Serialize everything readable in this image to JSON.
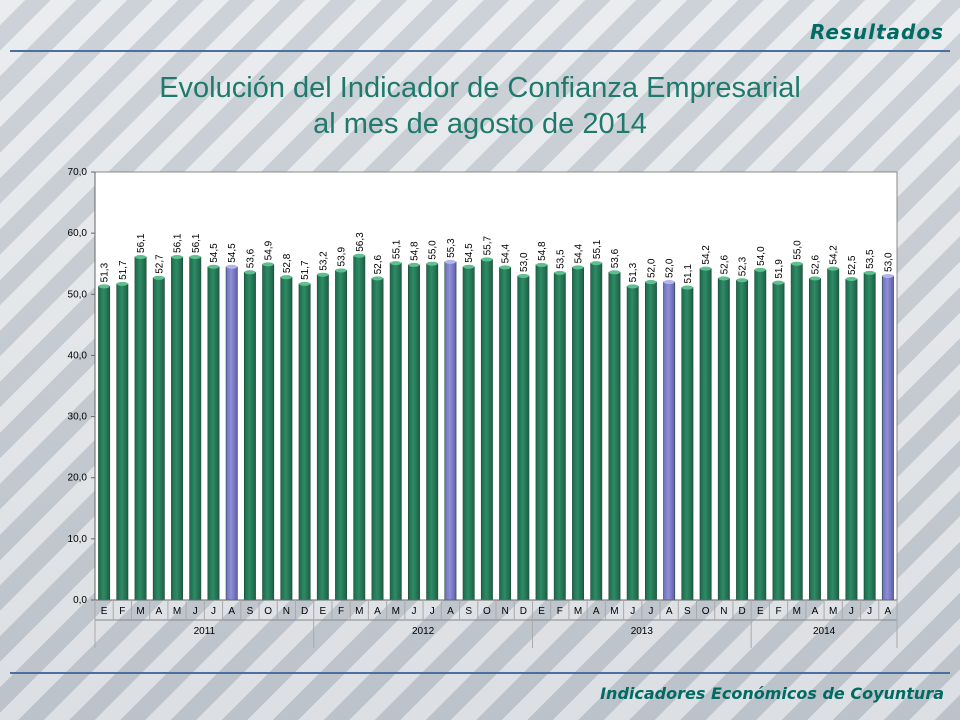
{
  "header": {
    "section_title": "Resultados"
  },
  "footer": {
    "text": "Indicadores Económicos de Coyuntura"
  },
  "chart_data": {
    "type": "bar",
    "title_line1": "Evolución del Indicador de Confianza Empresarial",
    "title_line2": "al mes de agosto de 2014",
    "ylim": [
      0,
      70
    ],
    "yticks": [
      "0,0",
      "10,0",
      "20,0",
      "30,0",
      "40,0",
      "50,0",
      "60,0",
      "70,0"
    ],
    "categories": [
      "E",
      "F",
      "M",
      "A",
      "M",
      "J",
      "J",
      "A",
      "S",
      "O",
      "N",
      "D",
      "E",
      "F",
      "M",
      "A",
      "M",
      "J",
      "J",
      "A",
      "S",
      "O",
      "N",
      "D",
      "E",
      "F",
      "M",
      "A",
      "M",
      "J",
      "J",
      "A",
      "S",
      "O",
      "N",
      "D",
      "E",
      "F",
      "M",
      "A",
      "M",
      "J",
      "J",
      "A"
    ],
    "values": [
      51.3,
      51.7,
      56.1,
      52.7,
      56.1,
      56.1,
      54.5,
      54.5,
      53.6,
      54.9,
      52.8,
      51.7,
      53.2,
      53.9,
      56.3,
      52.6,
      55.1,
      54.8,
      55.0,
      55.3,
      54.5,
      55.7,
      54.4,
      53.0,
      54.8,
      53.5,
      54.4,
      55.1,
      53.6,
      51.3,
      52.0,
      52.0,
      51.1,
      54.2,
      52.6,
      52.3,
      54.0,
      51.9,
      55.0,
      52.6,
      54.2,
      52.5,
      53.5,
      53.0
    ],
    "value_labels": [
      "51,3",
      "51,7",
      "56,1",
      "52,7",
      "56,1",
      "56,1",
      "54,5",
      "54,5",
      "53,6",
      "54,9",
      "52,8",
      "51,7",
      "53,2",
      "53,9",
      "56,3",
      "52,6",
      "55,1",
      "54,8",
      "55,0",
      "55,3",
      "54,5",
      "55,7",
      "54,4",
      "53,0",
      "54,8",
      "53,5",
      "54,4",
      "55,1",
      "53,6",
      "51,3",
      "52,0",
      "52,0",
      "51,1",
      "54,2",
      "52,6",
      "52,3",
      "54,0",
      "51,9",
      "55,0",
      "52,6",
      "54,2",
      "52,5",
      "53,5",
      "53,0"
    ],
    "highlight_indices": [
      7,
      19,
      31,
      43
    ],
    "years": [
      {
        "label": "2011",
        "count": 12
      },
      {
        "label": "2012",
        "count": 12
      },
      {
        "label": "2013",
        "count": 12
      },
      {
        "label": "2014",
        "count": 8
      }
    ],
    "colors": {
      "bar": "#2e8b66",
      "highlight": "#8f8fd6"
    },
    "grid": false
  }
}
